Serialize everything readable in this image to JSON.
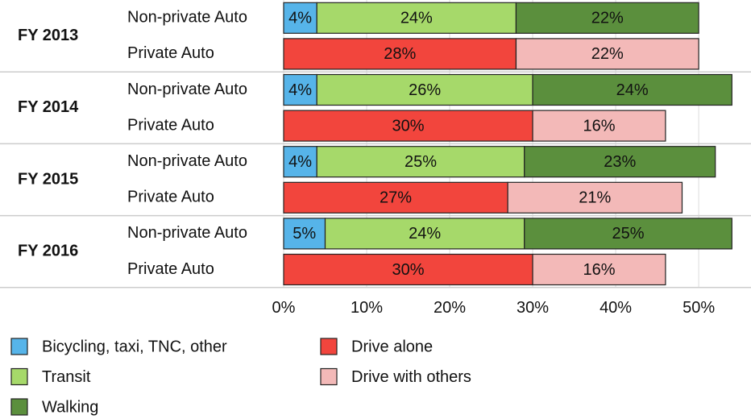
{
  "chart_data": {
    "type": "stacked_bar_horizontal",
    "groups": [
      "FY 2013",
      "FY 2014",
      "FY 2015",
      "FY 2016"
    ],
    "categories": [
      "Non-private Auto",
      "Private Auto",
      "Non-private Auto",
      "Private Auto",
      "Non-private Auto",
      "Private Auto",
      "Non-private Auto",
      "Private Auto"
    ],
    "series": [
      {
        "name": "Bicycling, taxi, TNC, other",
        "color": "#56b4e9",
        "values": [
          4,
          null,
          4,
          null,
          4,
          null,
          5,
          null
        ],
        "value_labels": [
          "4%",
          null,
          "4%",
          null,
          "4%",
          null,
          "5%",
          null
        ]
      },
      {
        "name": "Transit",
        "color": "#a6d96a",
        "values": [
          24,
          null,
          26,
          null,
          25,
          null,
          24,
          null
        ],
        "value_labels": [
          "24%",
          null,
          "26%",
          null,
          "25%",
          null,
          "24%",
          null
        ]
      },
      {
        "name": "Walking",
        "color": "#5b8f3d",
        "values": [
          22,
          null,
          24,
          null,
          23,
          null,
          25,
          null
        ],
        "value_labels": [
          "22%",
          null,
          "24%",
          null,
          "23%",
          null,
          "25%",
          null
        ]
      },
      {
        "name": "Drive alone",
        "color": "#f2453d",
        "values": [
          null,
          28,
          null,
          30,
          null,
          27,
          null,
          30
        ],
        "value_labels": [
          null,
          "28%",
          null,
          "30%",
          null,
          "27%",
          null,
          "30%"
        ]
      },
      {
        "name": "Drive with others",
        "color": "#f3b9b8",
        "values": [
          null,
          22,
          null,
          16,
          null,
          21,
          null,
          16
        ],
        "value_labels": [
          null,
          "22%",
          null,
          "16%",
          null,
          "21%",
          null,
          "16%"
        ]
      }
    ],
    "xlim": [
      0,
      56.3
    ],
    "xticks": [
      {
        "value": 0,
        "label": "0%"
      },
      {
        "value": 10,
        "label": "10%"
      },
      {
        "value": 20,
        "label": "20%"
      },
      {
        "value": 30,
        "label": "30%"
      },
      {
        "value": 40,
        "label": "40%"
      },
      {
        "value": 50,
        "label": "50%"
      }
    ],
    "grid": true,
    "legend": "bottom"
  }
}
